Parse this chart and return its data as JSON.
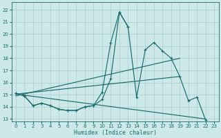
{
  "xlabel": "Humidex (Indice chaleur)",
  "bg_color": "#cce8e8",
  "grid_color": "#aacccc",
  "line_color": "#1a6b6b",
  "xlim": [
    -0.5,
    23.5
  ],
  "ylim": [
    12.8,
    22.6
  ],
  "xticks": [
    0,
    1,
    2,
    3,
    4,
    5,
    6,
    7,
    8,
    9,
    10,
    11,
    12,
    13,
    14,
    15,
    16,
    17,
    18,
    19,
    20,
    21,
    22,
    23
  ],
  "yticks": [
    13,
    14,
    15,
    16,
    17,
    18,
    19,
    20,
    21,
    22
  ],
  "line_main": {
    "x": [
      0,
      1,
      2,
      3,
      4,
      5,
      6,
      7,
      8,
      9,
      10,
      11,
      12,
      13,
      14,
      15,
      16,
      17,
      18,
      19,
      20,
      21,
      22
    ],
    "y": [
      15.1,
      14.9,
      14.1,
      14.3,
      14.1,
      13.8,
      13.7,
      13.7,
      14.0,
      14.1,
      14.6,
      16.3,
      21.8,
      20.6,
      14.8,
      18.7,
      19.3,
      18.6,
      18.0,
      16.5,
      14.5,
      14.8,
      12.9
    ]
  },
  "line_second": {
    "x": [
      0,
      1,
      2,
      3,
      4,
      5,
      6,
      7,
      8,
      9,
      10,
      11,
      12,
      13
    ],
    "y": [
      15.1,
      14.9,
      14.1,
      14.3,
      14.1,
      13.8,
      13.7,
      13.7,
      14.0,
      14.1,
      15.2,
      19.3,
      21.8,
      20.6
    ]
  },
  "line_rise": {
    "x": [
      0,
      19
    ],
    "y": [
      14.9,
      18.0
    ]
  },
  "line_decline": {
    "x": [
      0,
      22
    ],
    "y": [
      15.05,
      13.0
    ]
  },
  "line_mid": {
    "x": [
      0,
      19
    ],
    "y": [
      15.05,
      16.5
    ]
  }
}
